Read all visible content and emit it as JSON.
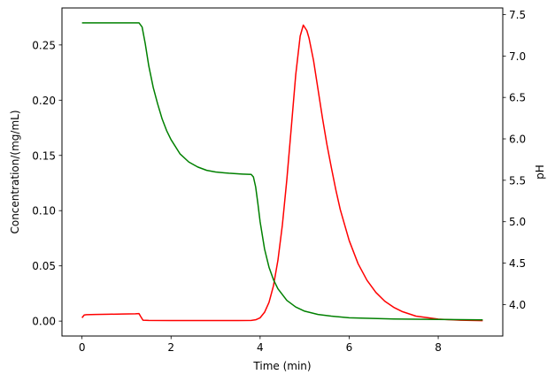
{
  "chart_data": {
    "type": "line",
    "title": "",
    "xlabel": "Time (min)",
    "ylabel_left": "Concentration/(mg/mL)",
    "ylabel_right": "pH",
    "xlim": [
      -0.45,
      9.45
    ],
    "ylim_left": [
      -0.0135,
      0.2835
    ],
    "ylim_right": [
      3.62,
      7.58
    ],
    "grid": false,
    "legend": "none",
    "x_ticks": [
      {
        "v": 0,
        "label": "0"
      },
      {
        "v": 2,
        "label": "2"
      },
      {
        "v": 4,
        "label": "4"
      },
      {
        "v": 6,
        "label": "6"
      },
      {
        "v": 8,
        "label": "8"
      }
    ],
    "y_left_ticks": [
      {
        "v": 0.0,
        "label": "0.00"
      },
      {
        "v": 0.05,
        "label": "0.05"
      },
      {
        "v": 0.1,
        "label": "0.10"
      },
      {
        "v": 0.15,
        "label": "0.15"
      },
      {
        "v": 0.2,
        "label": "0.20"
      },
      {
        "v": 0.25,
        "label": "0.25"
      }
    ],
    "y_right_ticks": [
      {
        "v": 4.0,
        "label": "4.0"
      },
      {
        "v": 4.5,
        "label": "4.5"
      },
      {
        "v": 5.0,
        "label": "5.0"
      },
      {
        "v": 5.5,
        "label": "5.5"
      },
      {
        "v": 6.0,
        "label": "6.0"
      },
      {
        "v": 6.5,
        "label": "6.5"
      },
      {
        "v": 7.0,
        "label": "7.0"
      },
      {
        "v": 7.5,
        "label": "7.5"
      }
    ],
    "series": [
      {
        "axis": "left",
        "color": "#ff0000",
        "points": [
          [
            0.0,
            0.003
          ],
          [
            0.05,
            0.0055
          ],
          [
            0.1,
            0.0058
          ],
          [
            0.3,
            0.006
          ],
          [
            0.6,
            0.0062
          ],
          [
            0.9,
            0.0064
          ],
          [
            1.2,
            0.0066
          ],
          [
            1.28,
            0.0068
          ],
          [
            1.32,
            0.004
          ],
          [
            1.37,
            0.0008
          ],
          [
            1.5,
            0.0006
          ],
          [
            2.0,
            0.0005
          ],
          [
            2.5,
            0.0005
          ],
          [
            3.0,
            0.0005
          ],
          [
            3.5,
            0.0005
          ],
          [
            3.8,
            0.0006
          ],
          [
            3.9,
            0.0012
          ],
          [
            4.0,
            0.003
          ],
          [
            4.1,
            0.008
          ],
          [
            4.2,
            0.017
          ],
          [
            4.3,
            0.032
          ],
          [
            4.4,
            0.055
          ],
          [
            4.5,
            0.087
          ],
          [
            4.6,
            0.128
          ],
          [
            4.7,
            0.175
          ],
          [
            4.8,
            0.223
          ],
          [
            4.9,
            0.258
          ],
          [
            4.97,
            0.268
          ],
          [
            5.05,
            0.263
          ],
          [
            5.1,
            0.256
          ],
          [
            5.2,
            0.236
          ],
          [
            5.3,
            0.21
          ],
          [
            5.4,
            0.184
          ],
          [
            5.5,
            0.16
          ],
          [
            5.6,
            0.139
          ],
          [
            5.7,
            0.119
          ],
          [
            5.8,
            0.101
          ],
          [
            6.0,
            0.073
          ],
          [
            6.2,
            0.052
          ],
          [
            6.4,
            0.037
          ],
          [
            6.6,
            0.026
          ],
          [
            6.8,
            0.018
          ],
          [
            7.0,
            0.0125
          ],
          [
            7.2,
            0.0085
          ],
          [
            7.5,
            0.0045
          ],
          [
            8.0,
            0.0018
          ],
          [
            8.5,
            0.0008
          ],
          [
            9.0,
            0.0004
          ]
        ]
      },
      {
        "axis": "right",
        "color": "#008000",
        "points": [
          [
            0.0,
            7.4
          ],
          [
            0.5,
            7.4
          ],
          [
            1.0,
            7.4
          ],
          [
            1.28,
            7.4
          ],
          [
            1.35,
            7.35
          ],
          [
            1.42,
            7.15
          ],
          [
            1.5,
            6.88
          ],
          [
            1.6,
            6.62
          ],
          [
            1.7,
            6.42
          ],
          [
            1.8,
            6.24
          ],
          [
            1.9,
            6.1
          ],
          [
            2.0,
            5.99
          ],
          [
            2.2,
            5.82
          ],
          [
            2.4,
            5.72
          ],
          [
            2.6,
            5.66
          ],
          [
            2.8,
            5.62
          ],
          [
            3.0,
            5.6
          ],
          [
            3.3,
            5.585
          ],
          [
            3.6,
            5.575
          ],
          [
            3.8,
            5.57
          ],
          [
            3.85,
            5.54
          ],
          [
            3.9,
            5.42
          ],
          [
            3.95,
            5.22
          ],
          [
            4.0,
            5.0
          ],
          [
            4.1,
            4.67
          ],
          [
            4.2,
            4.45
          ],
          [
            4.3,
            4.3
          ],
          [
            4.4,
            4.19
          ],
          [
            4.6,
            4.05
          ],
          [
            4.8,
            3.97
          ],
          [
            5.0,
            3.92
          ],
          [
            5.3,
            3.88
          ],
          [
            5.6,
            3.86
          ],
          [
            6.0,
            3.84
          ],
          [
            7.0,
            3.825
          ],
          [
            8.0,
            3.82
          ],
          [
            9.0,
            3.815
          ]
        ]
      }
    ]
  }
}
